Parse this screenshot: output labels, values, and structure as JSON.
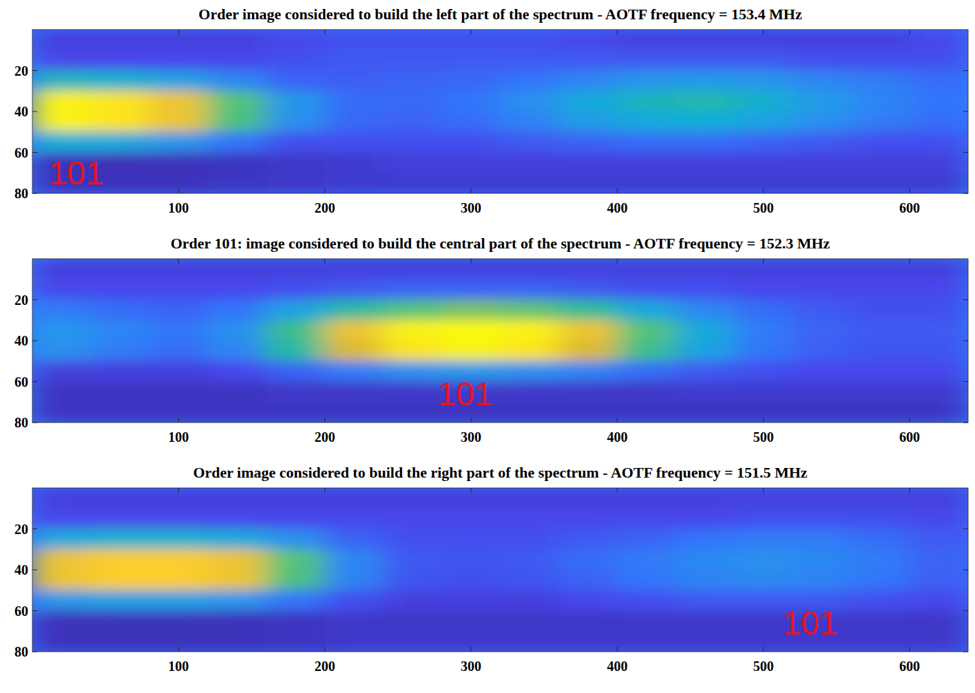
{
  "chart_data": [
    {
      "type": "heatmap",
      "title": "Order image considered to build the left part of the spectrum - AOTF frequency = 153.4 MHz",
      "x": [
        20,
        60,
        100,
        140,
        180,
        220,
        260,
        300,
        340,
        380,
        420,
        460,
        500,
        540,
        580,
        620
      ],
      "y": [
        5,
        15,
        25,
        35,
        45,
        55,
        65,
        75
      ],
      "z": [
        [
          8,
          8,
          8,
          8,
          10,
          12,
          12,
          12,
          12,
          10,
          8,
          8,
          8,
          8,
          8,
          10
        ],
        [
          10,
          10,
          10,
          10,
          12,
          14,
          14,
          14,
          14,
          14,
          14,
          14,
          14,
          12,
          12,
          12
        ],
        [
          45,
          42,
          35,
          25,
          16,
          15,
          16,
          17,
          20,
          25,
          30,
          32,
          30,
          25,
          22,
          18
        ],
        [
          98,
          95,
          85,
          60,
          30,
          18,
          17,
          20,
          28,
          38,
          45,
          48,
          42,
          32,
          25,
          20
        ],
        [
          98,
          95,
          85,
          58,
          28,
          17,
          16,
          18,
          24,
          32,
          38,
          40,
          35,
          28,
          22,
          18
        ],
        [
          40,
          38,
          30,
          20,
          12,
          12,
          12,
          12,
          14,
          16,
          18,
          18,
          16,
          14,
          12,
          12
        ],
        [
          3,
          3,
          3,
          4,
          5,
          6,
          8,
          8,
          8,
          8,
          8,
          8,
          8,
          8,
          8,
          8
        ],
        [
          3,
          3,
          3,
          4,
          5,
          6,
          6,
          6,
          6,
          6,
          6,
          6,
          6,
          6,
          6,
          6
        ]
      ],
      "zlim": [
        0,
        100
      ],
      "xlim": [
        0,
        640
      ],
      "ylim": [
        80,
        0
      ],
      "xticks": [
        100,
        200,
        300,
        400,
        500,
        600
      ],
      "yticks": [
        20,
        40,
        60,
        80
      ],
      "annotations": [
        {
          "text": "101",
          "x": 30,
          "y": 70,
          "color": "#e8141e"
        }
      ]
    },
    {
      "type": "heatmap",
      "title": "Order 101: image considered to build the central part of the spectrum - AOTF frequency = 152.3 MHz",
      "x": [
        20,
        60,
        100,
        140,
        180,
        220,
        260,
        300,
        340,
        380,
        420,
        460,
        500,
        540,
        580,
        620
      ],
      "y": [
        5,
        15,
        25,
        35,
        45,
        55,
        65,
        75
      ],
      "z": [
        [
          8,
          8,
          8,
          8,
          8,
          8,
          8,
          8,
          8,
          8,
          8,
          8,
          8,
          8,
          8,
          8
        ],
        [
          10,
          10,
          10,
          10,
          12,
          14,
          16,
          16,
          16,
          14,
          12,
          12,
          10,
          10,
          10,
          10
        ],
        [
          22,
          18,
          16,
          20,
          35,
          50,
          60,
          65,
          62,
          52,
          38,
          25,
          18,
          14,
          12,
          12
        ],
        [
          30,
          25,
          20,
          28,
          55,
          85,
          98,
          100,
          98,
          85,
          60,
          38,
          22,
          16,
          14,
          14
        ],
        [
          28,
          22,
          18,
          25,
          50,
          80,
          95,
          98,
          95,
          80,
          55,
          35,
          20,
          15,
          13,
          13
        ],
        [
          8,
          8,
          8,
          10,
          16,
          22,
          28,
          30,
          28,
          24,
          18,
          14,
          12,
          10,
          10,
          10
        ],
        [
          4,
          4,
          4,
          4,
          5,
          5,
          5,
          5,
          5,
          5,
          5,
          6,
          6,
          6,
          6,
          6
        ],
        [
          4,
          4,
          4,
          4,
          4,
          4,
          4,
          4,
          4,
          4,
          4,
          4,
          4,
          4,
          4,
          4
        ]
      ],
      "zlim": [
        0,
        100
      ],
      "xlim": [
        0,
        640
      ],
      "ylim": [
        80,
        0
      ],
      "xticks": [
        100,
        200,
        300,
        400,
        500,
        600
      ],
      "yticks": [
        20,
        40,
        60,
        80
      ],
      "annotations": [
        {
          "text": "101",
          "x": 296,
          "y": 66,
          "color": "#e8141e"
        }
      ]
    },
    {
      "type": "heatmap",
      "title": "Order image considered to build the right part of the spectrum - AOTF frequency = 151.5 MHz",
      "x": [
        20,
        60,
        100,
        140,
        180,
        220,
        260,
        300,
        340,
        380,
        420,
        460,
        500,
        540,
        580,
        620
      ],
      "y": [
        5,
        15,
        25,
        35,
        45,
        55,
        65,
        75
      ],
      "z": [
        [
          8,
          8,
          8,
          8,
          8,
          8,
          8,
          8,
          8,
          8,
          8,
          8,
          8,
          8,
          8,
          8
        ],
        [
          10,
          10,
          10,
          10,
          10,
          10,
          10,
          10,
          10,
          10,
          10,
          10,
          12,
          12,
          12,
          10
        ],
        [
          38,
          42,
          42,
          38,
          28,
          16,
          12,
          12,
          12,
          14,
          16,
          20,
          22,
          22,
          18,
          14
        ],
        [
          85,
          90,
          90,
          85,
          60,
          25,
          14,
          13,
          14,
          18,
          22,
          26,
          28,
          26,
          22,
          16
        ],
        [
          85,
          90,
          90,
          85,
          58,
          24,
          13,
          12,
          13,
          16,
          20,
          24,
          26,
          24,
          20,
          15
        ],
        [
          30,
          34,
          34,
          30,
          20,
          12,
          8,
          8,
          8,
          10,
          12,
          14,
          14,
          14,
          12,
          10
        ],
        [
          3,
          3,
          3,
          3,
          4,
          5,
          5,
          5,
          5,
          5,
          5,
          5,
          5,
          5,
          5,
          5
        ],
        [
          3,
          3,
          3,
          3,
          4,
          5,
          5,
          5,
          5,
          5,
          5,
          5,
          5,
          5,
          5,
          5
        ]
      ],
      "zlim": [
        0,
        100
      ],
      "xlim": [
        0,
        640
      ],
      "ylim": [
        80,
        0
      ],
      "xticks": [
        100,
        200,
        300,
        400,
        500,
        600
      ],
      "yticks": [
        20,
        40,
        60,
        80
      ],
      "annotations": [
        {
          "text": "101",
          "x": 532,
          "y": 66,
          "color": "#e8141e"
        }
      ]
    }
  ]
}
